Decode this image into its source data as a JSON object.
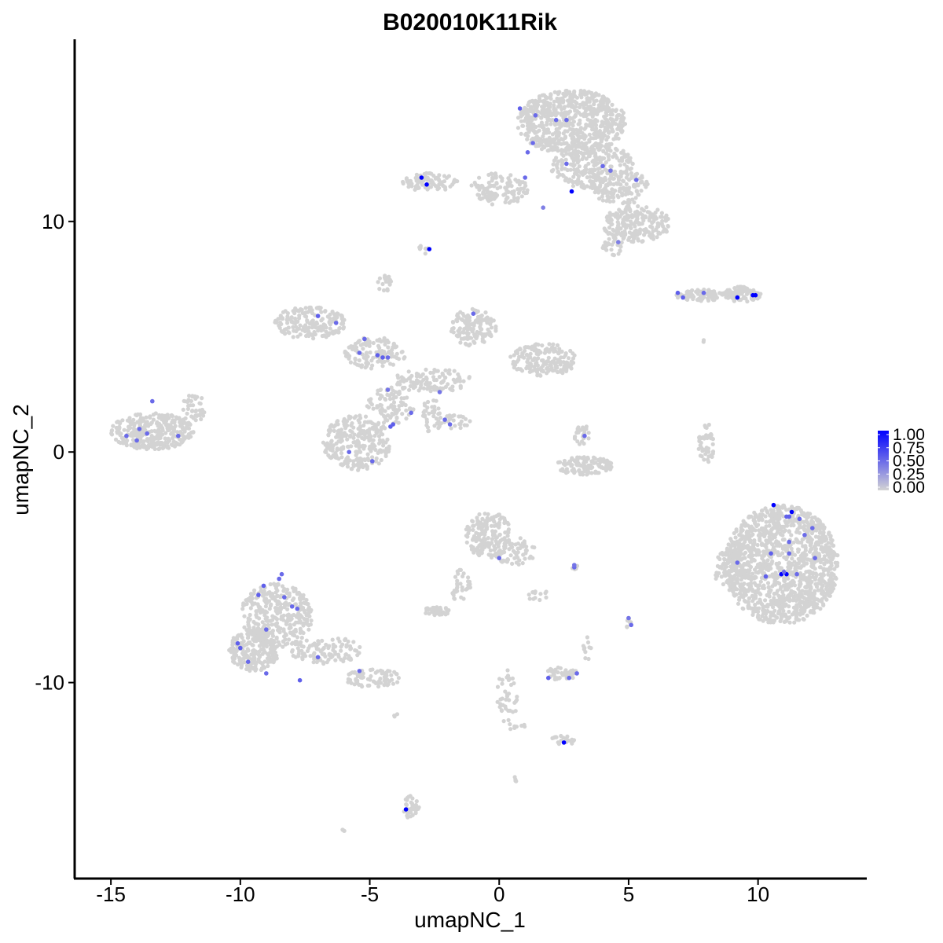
{
  "chart_data": {
    "type": "scatter",
    "title": "B020010K11Rik",
    "xlabel": "umapNC_1",
    "ylabel": "umapNC_2",
    "xlim": [
      -16.4,
      14.2
    ],
    "ylim": [
      -18.5,
      17.9
    ],
    "x_ticks": [
      -15,
      -10,
      -5,
      0,
      5,
      10
    ],
    "x_tick_labels": [
      "-15",
      "-10",
      "-5",
      "0",
      "5",
      "10"
    ],
    "y_ticks": [
      -10,
      0,
      10
    ],
    "y_tick_labels": [
      "-10",
      "0",
      "10"
    ],
    "grid": false,
    "legend": {
      "placement": "right",
      "type": "colorbar",
      "labels": [
        "1.00",
        "0.75",
        "0.50",
        "0.25",
        "0.00"
      ],
      "low_color": "#d3d3d3",
      "high_color": "#0000ff"
    },
    "background_clusters": [
      {
        "cx": 2.8,
        "cy": 14.3,
        "rx": 2.1,
        "ry": 1.4,
        "n": 700
      },
      {
        "cx": 3.6,
        "cy": 12.4,
        "rx": 1.6,
        "ry": 1.0,
        "n": 250
      },
      {
        "cx": 5.3,
        "cy": 9.9,
        "rx": 1.3,
        "ry": 0.8,
        "n": 220
      },
      {
        "cx": 4.6,
        "cy": 11.5,
        "rx": 1.2,
        "ry": 0.8,
        "n": 140
      },
      {
        "cx": 0.0,
        "cy": 11.4,
        "rx": 1.1,
        "ry": 0.7,
        "n": 120
      },
      {
        "cx": -2.7,
        "cy": 11.7,
        "rx": 1.1,
        "ry": 0.4,
        "n": 90
      },
      {
        "cx": 4.4,
        "cy": 8.9,
        "rx": 0.4,
        "ry": 0.4,
        "n": 25
      },
      {
        "cx": -2.9,
        "cy": 8.8,
        "rx": 0.2,
        "ry": 0.2,
        "n": 8
      },
      {
        "cx": 7.9,
        "cy": 6.8,
        "rx": 1.1,
        "ry": 0.25,
        "n": 80
      },
      {
        "cx": 9.4,
        "cy": 6.85,
        "rx": 0.7,
        "ry": 0.35,
        "n": 90
      },
      {
        "cx": -4.4,
        "cy": 7.3,
        "rx": 0.3,
        "ry": 0.35,
        "n": 20
      },
      {
        "cx": -7.3,
        "cy": 5.6,
        "rx": 1.4,
        "ry": 0.7,
        "n": 180
      },
      {
        "cx": -4.8,
        "cy": 4.3,
        "rx": 1.2,
        "ry": 0.7,
        "n": 120
      },
      {
        "cx": -1.0,
        "cy": 5.4,
        "rx": 0.9,
        "ry": 0.8,
        "n": 140
      },
      {
        "cx": 1.7,
        "cy": 4.0,
        "rx": 1.3,
        "ry": 0.7,
        "n": 180
      },
      {
        "cx": -2.6,
        "cy": 3.1,
        "rx": 1.6,
        "ry": 0.5,
        "n": 110
      },
      {
        "cx": -4.2,
        "cy": 2.0,
        "rx": 0.9,
        "ry": 0.8,
        "n": 90
      },
      {
        "cx": -5.5,
        "cy": 0.4,
        "rx": 1.3,
        "ry": 1.2,
        "n": 280
      },
      {
        "cx": -2.6,
        "cy": 1.6,
        "rx": 0.4,
        "ry": 0.8,
        "n": 35
      },
      {
        "cx": -1.9,
        "cy": 1.3,
        "rx": 0.8,
        "ry": 0.3,
        "n": 30
      },
      {
        "cx": -13.4,
        "cy": 0.9,
        "rx": 1.6,
        "ry": 0.8,
        "n": 330
      },
      {
        "cx": -11.8,
        "cy": 1.9,
        "rx": 0.5,
        "ry": 0.6,
        "n": 40
      },
      {
        "cx": 3.3,
        "cy": -0.6,
        "rx": 1.1,
        "ry": 0.4,
        "n": 120
      },
      {
        "cx": 3.2,
        "cy": 0.7,
        "rx": 0.3,
        "ry": 0.5,
        "n": 25
      },
      {
        "cx": 8.0,
        "cy": 0.3,
        "rx": 0.3,
        "ry": 1.0,
        "n": 45
      },
      {
        "cx": 10.9,
        "cy": -4.9,
        "rx": 2.2,
        "ry": 2.6,
        "n": 1300
      },
      {
        "cx": 9.0,
        "cy": -5.1,
        "rx": 0.7,
        "ry": 0.9,
        "n": 110
      },
      {
        "cx": -0.4,
        "cy": -3.6,
        "rx": 0.9,
        "ry": 1.0,
        "n": 170
      },
      {
        "cx": 0.6,
        "cy": -4.3,
        "rx": 0.8,
        "ry": 0.6,
        "n": 60
      },
      {
        "cx": -1.5,
        "cy": -5.8,
        "rx": 0.4,
        "ry": 0.8,
        "n": 35
      },
      {
        "cx": -2.4,
        "cy": -6.9,
        "rx": 0.5,
        "ry": 0.2,
        "n": 40
      },
      {
        "cx": 1.5,
        "cy": -6.3,
        "rx": 0.4,
        "ry": 0.4,
        "n": 15
      },
      {
        "cx": -8.6,
        "cy": -7.1,
        "rx": 1.4,
        "ry": 1.4,
        "n": 350
      },
      {
        "cx": -9.5,
        "cy": -8.6,
        "rx": 1.0,
        "ry": 0.9,
        "n": 200
      },
      {
        "cx": -6.7,
        "cy": -8.6,
        "rx": 1.4,
        "ry": 0.6,
        "n": 110
      },
      {
        "cx": -4.9,
        "cy": -9.8,
        "rx": 1.1,
        "ry": 0.4,
        "n": 80
      },
      {
        "cx": 2.4,
        "cy": -9.6,
        "rx": 0.6,
        "ry": 0.3,
        "n": 45
      },
      {
        "cx": 2.5,
        "cy": -12.5,
        "rx": 0.5,
        "ry": 0.2,
        "n": 20
      },
      {
        "cx": 0.3,
        "cy": -10.8,
        "rx": 0.4,
        "ry": 1.5,
        "n": 40
      },
      {
        "cx": 0.8,
        "cy": -11.9,
        "rx": 0.3,
        "ry": 0.1,
        "n": 6
      },
      {
        "cx": 3.4,
        "cy": -8.5,
        "rx": 0.2,
        "ry": 0.5,
        "n": 10
      },
      {
        "cx": 5.0,
        "cy": -7.4,
        "rx": 0.1,
        "ry": 0.3,
        "n": 10
      },
      {
        "cx": 2.9,
        "cy": -5.0,
        "rx": 0.15,
        "ry": 0.1,
        "n": 5
      },
      {
        "cx": -3.4,
        "cy": -15.4,
        "rx": 0.3,
        "ry": 0.5,
        "n": 35
      },
      {
        "cx": -6.0,
        "cy": -16.4,
        "rx": 0.1,
        "ry": 0.1,
        "n": 4
      },
      {
        "cx": 0.6,
        "cy": -14.2,
        "rx": 0.1,
        "ry": 0.1,
        "n": 4
      },
      {
        "cx": -4.0,
        "cy": -11.4,
        "rx": 0.1,
        "ry": 0.1,
        "n": 3
      },
      {
        "cx": 7.9,
        "cy": 4.8,
        "rx": 0.1,
        "ry": 0.1,
        "n": 2
      }
    ],
    "expressing_cells": [
      {
        "x": -3.0,
        "y": 11.9,
        "v": 1.0
      },
      {
        "x": -2.8,
        "y": 11.6,
        "v": 1.0
      },
      {
        "x": 2.8,
        "y": 11.3,
        "v": 1.0
      },
      {
        "x": -2.7,
        "y": 8.8,
        "v": 1.0
      },
      {
        "x": 9.2,
        "y": 6.7,
        "v": 1.0
      },
      {
        "x": 9.8,
        "y": 6.8,
        "v": 1.0
      },
      {
        "x": 9.9,
        "y": 6.8,
        "v": 1.0
      },
      {
        "x": 10.6,
        "y": -2.3,
        "v": 1.0
      },
      {
        "x": 11.3,
        "y": -2.6,
        "v": 1.0
      },
      {
        "x": 10.9,
        "y": -5.3,
        "v": 1.0
      },
      {
        "x": 11.1,
        "y": -5.3,
        "v": 1.0
      },
      {
        "x": 2.5,
        "y": -12.6,
        "v": 1.0
      },
      {
        "x": -3.6,
        "y": -15.5,
        "v": 1.0
      },
      {
        "x": 0.8,
        "y": 14.9,
        "v": 0.55
      },
      {
        "x": 1.4,
        "y": 14.6,
        "v": 0.5
      },
      {
        "x": 2.2,
        "y": 14.4,
        "v": 0.5
      },
      {
        "x": 2.6,
        "y": 14.4,
        "v": 0.5
      },
      {
        "x": 1.3,
        "y": 13.4,
        "v": 0.5
      },
      {
        "x": 1.1,
        "y": 13.0,
        "v": 0.5
      },
      {
        "x": 2.6,
        "y": 12.5,
        "v": 0.5
      },
      {
        "x": 4.0,
        "y": 12.4,
        "v": 0.5
      },
      {
        "x": 4.3,
        "y": 12.2,
        "v": 0.45
      },
      {
        "x": 5.3,
        "y": 11.8,
        "v": 0.5
      },
      {
        "x": 1.0,
        "y": 11.9,
        "v": 0.5
      },
      {
        "x": 1.7,
        "y": 10.6,
        "v": 0.4
      },
      {
        "x": 4.6,
        "y": 9.1,
        "v": 0.4
      },
      {
        "x": 6.9,
        "y": 6.9,
        "v": 0.55
      },
      {
        "x": 7.1,
        "y": 6.7,
        "v": 0.55
      },
      {
        "x": 7.9,
        "y": 6.9,
        "v": 0.5
      },
      {
        "x": -7.0,
        "y": 5.9,
        "v": 0.55
      },
      {
        "x": -6.3,
        "y": 5.6,
        "v": 0.5
      },
      {
        "x": -5.2,
        "y": 4.9,
        "v": 0.5
      },
      {
        "x": -5.4,
        "y": 4.3,
        "v": 0.5
      },
      {
        "x": -4.7,
        "y": 4.2,
        "v": 0.55
      },
      {
        "x": -4.5,
        "y": 4.1,
        "v": 0.55
      },
      {
        "x": -4.3,
        "y": 4.1,
        "v": 0.5
      },
      {
        "x": -1.0,
        "y": 6.0,
        "v": 0.5
      },
      {
        "x": -4.3,
        "y": 2.7,
        "v": 0.45
      },
      {
        "x": -2.3,
        "y": 2.6,
        "v": 0.45
      },
      {
        "x": -3.4,
        "y": 1.7,
        "v": 0.5
      },
      {
        "x": -4.1,
        "y": 1.2,
        "v": 0.55
      },
      {
        "x": -4.2,
        "y": 1.1,
        "v": 0.55
      },
      {
        "x": -2.1,
        "y": 1.4,
        "v": 0.5
      },
      {
        "x": -1.9,
        "y": 1.2,
        "v": 0.5
      },
      {
        "x": -5.8,
        "y": -0.0,
        "v": 0.5
      },
      {
        "x": -4.9,
        "y": -0.4,
        "v": 0.5
      },
      {
        "x": -13.4,
        "y": 2.2,
        "v": 0.5
      },
      {
        "x": -13.9,
        "y": 1.0,
        "v": 0.5
      },
      {
        "x": -13.6,
        "y": 0.8,
        "v": 0.5
      },
      {
        "x": -14.4,
        "y": 0.7,
        "v": 0.5
      },
      {
        "x": -14.0,
        "y": 0.5,
        "v": 0.5
      },
      {
        "x": -12.4,
        "y": 0.7,
        "v": 0.5
      },
      {
        "x": 3.3,
        "y": 0.7,
        "v": 0.5
      },
      {
        "x": 11.2,
        "y": -2.8,
        "v": 0.55
      },
      {
        "x": 11.1,
        "y": -2.8,
        "v": 0.55
      },
      {
        "x": 11.6,
        "y": -2.9,
        "v": 0.5
      },
      {
        "x": 11.8,
        "y": -3.6,
        "v": 0.5
      },
      {
        "x": 12.1,
        "y": -3.3,
        "v": 0.5
      },
      {
        "x": 11.2,
        "y": -3.9,
        "v": 0.5
      },
      {
        "x": 10.5,
        "y": -4.4,
        "v": 0.55
      },
      {
        "x": 11.2,
        "y": -4.4,
        "v": 0.5
      },
      {
        "x": 12.2,
        "y": -4.6,
        "v": 0.5
      },
      {
        "x": 9.2,
        "y": -4.8,
        "v": 0.5
      },
      {
        "x": 10.3,
        "y": -5.4,
        "v": 0.55
      },
      {
        "x": 11.5,
        "y": -5.3,
        "v": 0.5
      },
      {
        "x": 11.0,
        "y": -5.2,
        "v": 0.5
      },
      {
        "x": -8.4,
        "y": -5.3,
        "v": 0.5
      },
      {
        "x": -8.5,
        "y": -5.5,
        "v": 0.5
      },
      {
        "x": -9.1,
        "y": -5.8,
        "v": 0.55
      },
      {
        "x": -9.3,
        "y": -6.2,
        "v": 0.55
      },
      {
        "x": -8.3,
        "y": -6.3,
        "v": 0.5
      },
      {
        "x": -8.0,
        "y": -6.7,
        "v": 0.5
      },
      {
        "x": -7.8,
        "y": -6.8,
        "v": 0.5
      },
      {
        "x": -9.0,
        "y": -7.7,
        "v": 0.5
      },
      {
        "x": -10.1,
        "y": -8.3,
        "v": 0.55
      },
      {
        "x": -10.0,
        "y": -8.5,
        "v": 0.55
      },
      {
        "x": -7.0,
        "y": -8.9,
        "v": 0.5
      },
      {
        "x": -9.7,
        "y": -9.1,
        "v": 0.5
      },
      {
        "x": -9.0,
        "y": -9.6,
        "v": 0.5
      },
      {
        "x": -7.7,
        "y": -9.9,
        "v": 0.55
      },
      {
        "x": -5.4,
        "y": -9.5,
        "v": 0.5
      },
      {
        "x": 0.0,
        "y": -4.6,
        "v": 0.5
      },
      {
        "x": 2.9,
        "y": -5.0,
        "v": 0.5
      },
      {
        "x": 2.9,
        "y": -4.9,
        "v": 0.45
      },
      {
        "x": 5.0,
        "y": -7.2,
        "v": 0.45
      },
      {
        "x": 5.1,
        "y": -7.5,
        "v": 0.5
      },
      {
        "x": 1.9,
        "y": -9.8,
        "v": 0.55
      },
      {
        "x": 2.7,
        "y": -9.8,
        "v": 0.5
      },
      {
        "x": 3.0,
        "y": -9.6,
        "v": 0.5
      }
    ]
  }
}
